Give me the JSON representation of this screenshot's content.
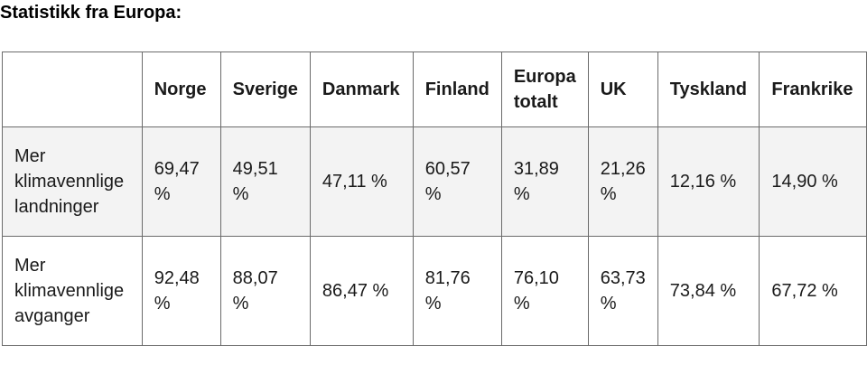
{
  "page": {
    "title": "Statistikk fra Europa:"
  },
  "table": {
    "headers": [
      "",
      "Norge",
      "Sverige",
      "Danmark",
      "Finland",
      "Europa totalt",
      "UK",
      "Tyskland",
      "Frankrike"
    ],
    "rows": [
      {
        "label": "Mer klimavennlige landninger",
        "values": [
          "69,47 %",
          "49,51 %",
          "47,11 %",
          "60,57 %",
          "31,89 %",
          "21,26 %",
          "12,16 %",
          "14,90 %"
        ]
      },
      {
        "label": "Mer klimavennlige avganger",
        "values": [
          "92,48 %",
          "88,07 %",
          "86,47 %",
          "81,76 %",
          "76,10 %",
          "63,73 %",
          "73,84 %",
          "67,72 %"
        ]
      }
    ],
    "colors": {
      "border": "#6b6b6b",
      "row_alt_bg": "#f3f3f3",
      "text": "#1a1a1a"
    }
  }
}
